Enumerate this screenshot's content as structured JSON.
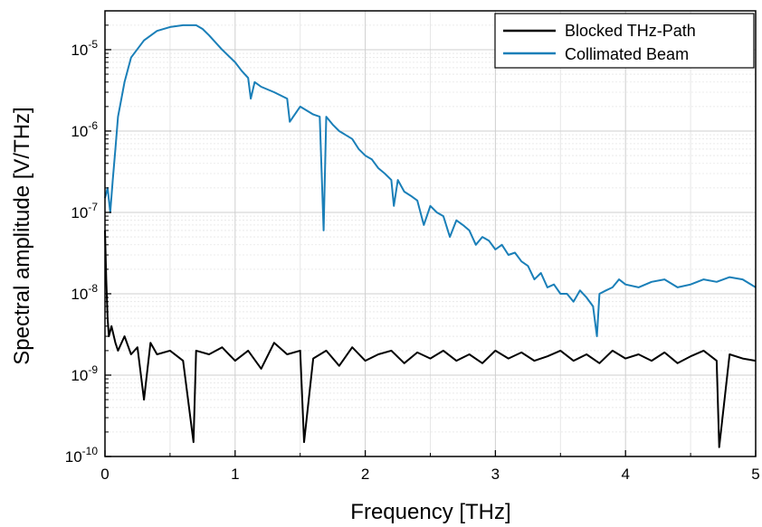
{
  "chart_data": {
    "type": "line",
    "title": "",
    "xlabel": "Frequency [THz]",
    "ylabel": "Spectral amplitude [V/THz]",
    "xlim": [
      0,
      5
    ],
    "ylim": [
      1e-10,
      3e-05
    ],
    "y_scale": "log",
    "grid": true,
    "legend_position": "top-right",
    "x_ticks": [
      "0",
      "1",
      "2",
      "3",
      "4",
      "5"
    ],
    "y_ticks": [
      {
        "mantissa": "10",
        "exp": "-10"
      },
      {
        "mantissa": "10",
        "exp": "-9"
      },
      {
        "mantissa": "10",
        "exp": "-8"
      },
      {
        "mantissa": "10",
        "exp": "-7"
      },
      {
        "mantissa": "10",
        "exp": "-6"
      },
      {
        "mantissa": "10",
        "exp": "-5"
      }
    ],
    "series": [
      {
        "name": "Blocked THz-Path",
        "color": "#000000",
        "x": [
          0.0,
          0.01,
          0.02,
          0.03,
          0.05,
          0.08,
          0.1,
          0.15,
          0.2,
          0.25,
          0.3,
          0.35,
          0.4,
          0.5,
          0.6,
          0.68,
          0.7,
          0.8,
          0.9,
          1.0,
          1.1,
          1.2,
          1.3,
          1.4,
          1.5,
          1.53,
          1.6,
          1.7,
          1.8,
          1.9,
          2.0,
          2.1,
          2.2,
          2.3,
          2.4,
          2.5,
          2.6,
          2.7,
          2.8,
          2.9,
          3.0,
          3.1,
          3.2,
          3.3,
          3.4,
          3.5,
          3.6,
          3.7,
          3.8,
          3.9,
          4.0,
          4.1,
          4.2,
          4.3,
          4.4,
          4.5,
          4.6,
          4.7,
          4.72,
          4.8,
          4.9,
          5.0
        ],
        "y": [
          6e-08,
          1.5e-08,
          5e-09,
          3e-09,
          4e-09,
          2.5e-09,
          2e-09,
          3e-09,
          1.8e-09,
          2.2e-09,
          5e-10,
          2.5e-09,
          1.8e-09,
          2e-09,
          1.5e-09,
          1.5e-10,
          2e-09,
          1.8e-09,
          2.2e-09,
          1.5e-09,
          2e-09,
          1.2e-09,
          2.5e-09,
          1.8e-09,
          2e-09,
          1.5e-10,
          1.6e-09,
          2e-09,
          1.3e-09,
          2.2e-09,
          1.5e-09,
          1.8e-09,
          2e-09,
          1.4e-09,
          1.9e-09,
          1.6e-09,
          2e-09,
          1.5e-09,
          1.8e-09,
          1.4e-09,
          2e-09,
          1.6e-09,
          1.9e-09,
          1.5e-09,
          1.7e-09,
          2e-09,
          1.5e-09,
          1.8e-09,
          1.4e-09,
          2e-09,
          1.6e-09,
          1.8e-09,
          1.5e-09,
          1.9e-09,
          1.4e-09,
          1.7e-09,
          2e-09,
          1.5e-09,
          1.3e-10,
          1.8e-09,
          1.6e-09,
          1.5e-09
        ]
      },
      {
        "name": "Collimated Beam",
        "color": "#1a7fb8",
        "x": [
          0.0,
          0.02,
          0.04,
          0.06,
          0.08,
          0.1,
          0.15,
          0.2,
          0.3,
          0.4,
          0.5,
          0.6,
          0.7,
          0.75,
          0.8,
          0.9,
          1.0,
          1.05,
          1.1,
          1.12,
          1.15,
          1.2,
          1.3,
          1.4,
          1.42,
          1.5,
          1.6,
          1.65,
          1.68,
          1.7,
          1.75,
          1.8,
          1.9,
          1.95,
          2.0,
          2.05,
          2.1,
          2.15,
          2.2,
          2.22,
          2.25,
          2.3,
          2.35,
          2.4,
          2.45,
          2.5,
          2.55,
          2.6,
          2.65,
          2.7,
          2.75,
          2.8,
          2.85,
          2.9,
          2.95,
          3.0,
          3.05,
          3.1,
          3.15,
          3.2,
          3.25,
          3.3,
          3.35,
          3.4,
          3.45,
          3.5,
          3.55,
          3.6,
          3.65,
          3.7,
          3.75,
          3.78,
          3.8,
          3.85,
          3.9,
          3.95,
          4.0,
          4.1,
          4.2,
          4.3,
          4.4,
          4.5,
          4.6,
          4.7,
          4.8,
          4.9,
          5.0
        ],
        "y": [
          1.5e-07,
          2e-07,
          1e-07,
          2.5e-07,
          6e-07,
          1.5e-06,
          4e-06,
          8e-06,
          1.3e-05,
          1.7e-05,
          1.9e-05,
          2e-05,
          2e-05,
          1.8e-05,
          1.5e-05,
          1e-05,
          7e-06,
          5.5e-06,
          4.5e-06,
          2.5e-06,
          4e-06,
          3.5e-06,
          3e-06,
          2.5e-06,
          1.3e-06,
          2e-06,
          1.6e-06,
          1.5e-06,
          6e-08,
          1.5e-06,
          1.2e-06,
          1e-06,
          8e-07,
          6e-07,
          5e-07,
          4.5e-07,
          3.5e-07,
          3e-07,
          2.5e-07,
          1.2e-07,
          2.5e-07,
          1.8e-07,
          1.6e-07,
          1.4e-07,
          7e-08,
          1.2e-07,
          1e-07,
          9e-08,
          5e-08,
          8e-08,
          7e-08,
          6e-08,
          4e-08,
          5e-08,
          4.5e-08,
          3.5e-08,
          4e-08,
          3e-08,
          3.2e-08,
          2.5e-08,
          2.2e-08,
          1.5e-08,
          1.8e-08,
          1.2e-08,
          1.3e-08,
          1e-08,
          1e-08,
          8e-09,
          1.1e-08,
          9e-09,
          7e-09,
          3e-09,
          1e-08,
          1.1e-08,
          1.2e-08,
          1.5e-08,
          1.3e-08,
          1.2e-08,
          1.4e-08,
          1.5e-08,
          1.2e-08,
          1.3e-08,
          1.5e-08,
          1.4e-08,
          1.6e-08,
          1.5e-08,
          1.2e-08
        ]
      }
    ]
  }
}
